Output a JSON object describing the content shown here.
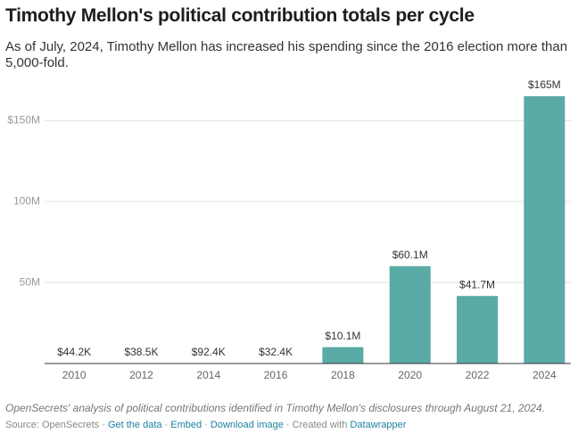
{
  "chart_data": {
    "type": "bar",
    "title": "Timothy Mellon's political contribution totals per cycle",
    "subtitle": "As of July, 2024, Timothy Mellon has increased his spending since the 2016 election more than 5,000-fold.",
    "categories": [
      "2010",
      "2012",
      "2014",
      "2016",
      "2018",
      "2020",
      "2022",
      "2024"
    ],
    "values": [
      44200,
      38500,
      92400,
      32400,
      10100000,
      60100000,
      41700000,
      165000000
    ],
    "value_labels": [
      "$44.2K",
      "$38.5K",
      "$92.4K",
      "$32.4K",
      "$10.1M",
      "$60.1M",
      "$41.7M",
      "$165M"
    ],
    "color": "#5aaaa6",
    "ylim": [
      0,
      165000000
    ],
    "yticks": [
      {
        "value": 50000000,
        "label": "50M"
      },
      {
        "value": 100000000,
        "label": "100M"
      },
      {
        "value": 150000000,
        "label": "$150M"
      }
    ],
    "grid": true,
    "note": "OpenSecrets' analysis of political contributions identified in Timothy Mellon's disclosures through August 21, 2024.",
    "source": "Source: OpenSecrets",
    "links": [
      "Get the data",
      "Embed",
      "Download image"
    ],
    "created_with": "Created with",
    "credit": "Datawrapper"
  }
}
